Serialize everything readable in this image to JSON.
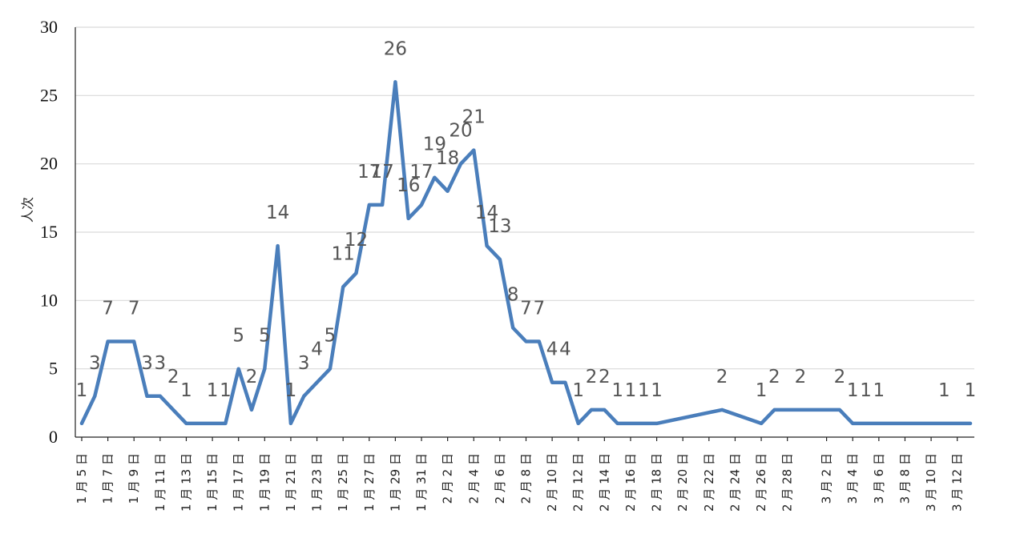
{
  "chart_data": {
    "type": "line",
    "title": "",
    "xlabel": "",
    "ylabel": "人次",
    "ylim": [
      0,
      30
    ],
    "yticks": [
      "0",
      "5",
      "10",
      "15",
      "20",
      "25",
      "30"
    ],
    "grid": true,
    "legend": "none",
    "line_color": "#4a7ebb",
    "label_color": "#555555",
    "x_start": "1月5日",
    "x_end": "3月13日",
    "xtick_labels": [
      "1月5日",
      "1月7日",
      "1月9日",
      "1月11日",
      "1月13日",
      "1月15日",
      "1月17日",
      "1月19日",
      "1月21日",
      "1月23日",
      "1月25日",
      "1月27日",
      "1月29日",
      "1月31日",
      "2月2日",
      "2月4日",
      "2月6日",
      "2月8日",
      "2月10日",
      "2月12日",
      "2月14日",
      "2月16日",
      "2月18日",
      "2月20日",
      "2月22日",
      "2月24日",
      "2月26日",
      "2月28日",
      "3月2日",
      "3月4日",
      "3月6日",
      "3月8日",
      "3月10日",
      "3月12日"
    ],
    "series": [
      {
        "points": [
          {
            "x": "1月5日",
            "y": 1,
            "label": "1"
          },
          {
            "x": "1月6日",
            "y": 3,
            "label": "3"
          },
          {
            "x": "1月7日",
            "y": 7,
            "label": "7"
          },
          {
            "x": "1月8日",
            "y": 7,
            "label": ""
          },
          {
            "x": "1月9日",
            "y": 7,
            "label": "7"
          },
          {
            "x": "1月10日",
            "y": 3,
            "label": "3"
          },
          {
            "x": "1月11日",
            "y": 3,
            "label": "3"
          },
          {
            "x": "1月12日",
            "y": 2,
            "label": "2"
          },
          {
            "x": "1月13日",
            "y": 1,
            "label": "1"
          },
          {
            "x": "1月15日",
            "y": 1,
            "label": "1"
          },
          {
            "x": "1月16日",
            "y": 1,
            "label": "1"
          },
          {
            "x": "1月17日",
            "y": 5,
            "label": "5"
          },
          {
            "x": "1月18日",
            "y": 2,
            "label": "2"
          },
          {
            "x": "1月19日",
            "y": 5,
            "label": "5"
          },
          {
            "x": "1月20日",
            "y": 14,
            "label": "14"
          },
          {
            "x": "1月21日",
            "y": 1,
            "label": "1"
          },
          {
            "x": "1月22日",
            "y": 3,
            "label": "3"
          },
          {
            "x": "1月23日",
            "y": 4,
            "label": "4"
          },
          {
            "x": "1月24日",
            "y": 5,
            "label": "5"
          },
          {
            "x": "1月25日",
            "y": 11,
            "label": "11"
          },
          {
            "x": "1月26日",
            "y": 12,
            "label": "12"
          },
          {
            "x": "1月27日",
            "y": 17,
            "label": "17"
          },
          {
            "x": "1月28日",
            "y": 17,
            "label": "17"
          },
          {
            "x": "1月29日",
            "y": 26,
            "label": "26"
          },
          {
            "x": "1月30日",
            "y": 16,
            "label": "16"
          },
          {
            "x": "1月31日",
            "y": 17,
            "label": "17"
          },
          {
            "x": "2月1日",
            "y": 19,
            "label": "19"
          },
          {
            "x": "2月2日",
            "y": 18,
            "label": "18"
          },
          {
            "x": "2月3日",
            "y": 20,
            "label": "20"
          },
          {
            "x": "2月4日",
            "y": 21,
            "label": "21"
          },
          {
            "x": "2月5日",
            "y": 14,
            "label": "14"
          },
          {
            "x": "2月6日",
            "y": 13,
            "label": "13"
          },
          {
            "x": "2月7日",
            "y": 8,
            "label": "8"
          },
          {
            "x": "2月8日",
            "y": 7,
            "label": "7"
          },
          {
            "x": "2月9日",
            "y": 7,
            "label": "7"
          },
          {
            "x": "2月10日",
            "y": 4,
            "label": "4"
          },
          {
            "x": "2月11日",
            "y": 4,
            "label": "4"
          },
          {
            "x": "2月12日",
            "y": 1,
            "label": "1"
          },
          {
            "x": "2月13日",
            "y": 2,
            "label": "2"
          },
          {
            "x": "2月14日",
            "y": 2,
            "label": "2"
          },
          {
            "x": "2月15日",
            "y": 1,
            "label": "1"
          },
          {
            "x": "2月16日",
            "y": 1,
            "label": "1"
          },
          {
            "x": "2月17日",
            "y": 1,
            "label": "1"
          },
          {
            "x": "2月18日",
            "y": 1,
            "label": "1"
          },
          {
            "x": "2月23日",
            "y": 2,
            "label": "2"
          },
          {
            "x": "2月26日",
            "y": 1,
            "label": "1"
          },
          {
            "x": "2月27日",
            "y": 2,
            "label": "2"
          },
          {
            "x": "2月29日",
            "y": 2,
            "label": "2"
          },
          {
            "x": "3月2日",
            "y": 2,
            "label": ""
          },
          {
            "x": "3月3日",
            "y": 2,
            "label": "2"
          },
          {
            "x": "3月4日",
            "y": 1,
            "label": "1"
          },
          {
            "x": "3月5日",
            "y": 1,
            "label": "1"
          },
          {
            "x": "3月6日",
            "y": 1,
            "label": "1"
          },
          {
            "x": "3月8日",
            "y": 1,
            "label": ""
          },
          {
            "x": "3月11日",
            "y": 1,
            "label": "1"
          },
          {
            "x": "3月13日",
            "y": 1,
            "label": "1"
          }
        ]
      }
    ]
  }
}
